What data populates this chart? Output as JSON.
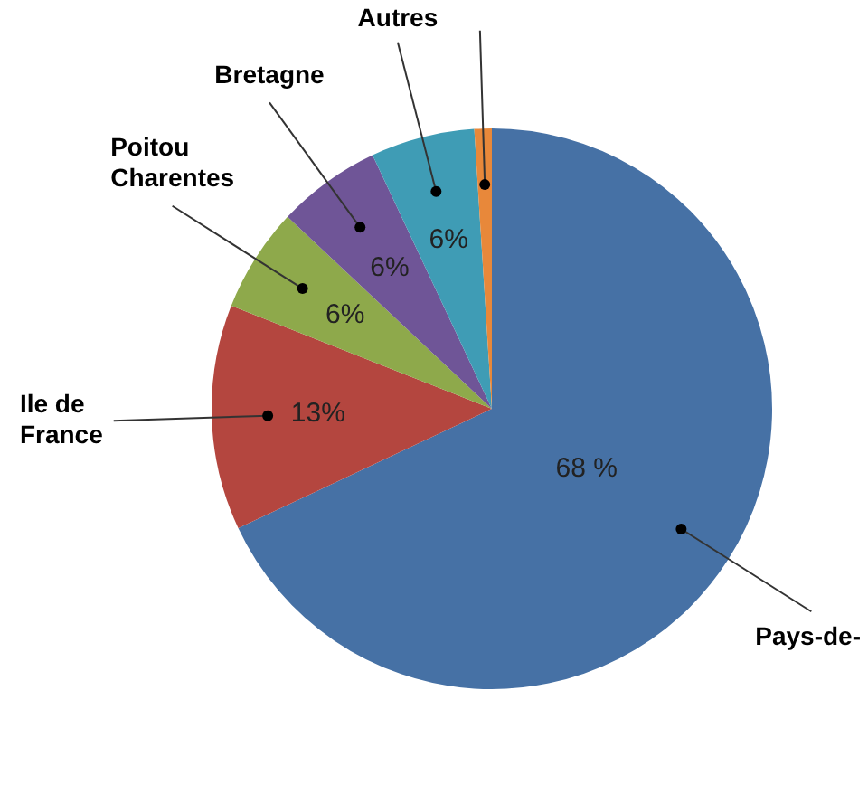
{
  "chart_data": {
    "type": "pie",
    "categories": [
      "Pays-de-",
      "Ile de France",
      "Poitou Charentes",
      "Bretagne",
      "Autres",
      null
    ],
    "values": [
      68,
      13,
      6,
      6,
      6,
      1
    ],
    "colors": [
      "#4671a5",
      "#b4463f",
      "#8ea94b",
      "#6f5597",
      "#3f9cb5",
      "#e8883a"
    ],
    "value_labels": [
      "68 %",
      "13%",
      "6%",
      "6%",
      "6%",
      null
    ],
    "legend": false
  }
}
